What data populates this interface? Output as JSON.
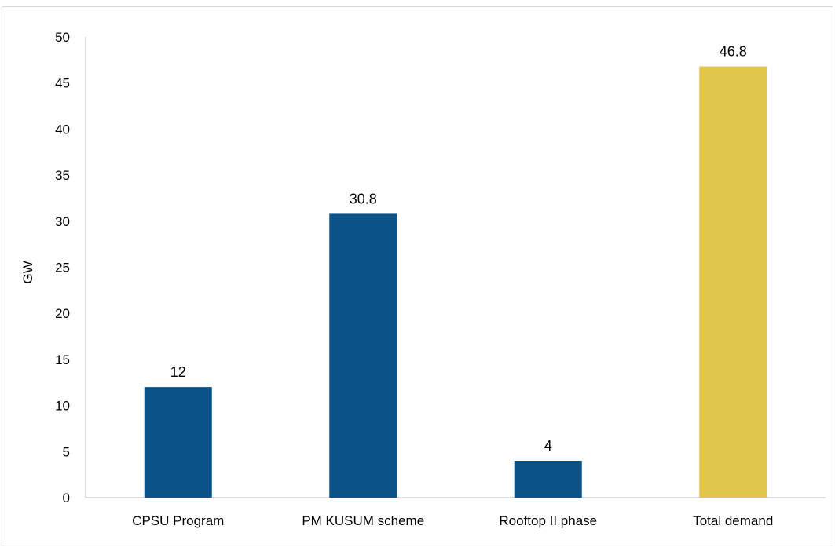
{
  "chart_data": {
    "type": "bar",
    "categories": [
      "CPSU Program",
      "PM KUSUM scheme",
      "Rooftop II phase",
      "Total demand"
    ],
    "values": [
      12,
      30.8,
      4,
      46.8
    ],
    "data_labels": [
      "12",
      "30.8",
      "4",
      "46.8"
    ],
    "bar_colors": [
      "#0b5288",
      "#0b5288",
      "#0b5288",
      "#e2c54f"
    ],
    "title": "",
    "xlabel": "",
    "ylabel": "GW",
    "ylim": [
      0,
      50
    ],
    "yticks": [
      0,
      5,
      10,
      15,
      20,
      25,
      30,
      35,
      40,
      45,
      50
    ],
    "grid": false,
    "legend": "none"
  }
}
